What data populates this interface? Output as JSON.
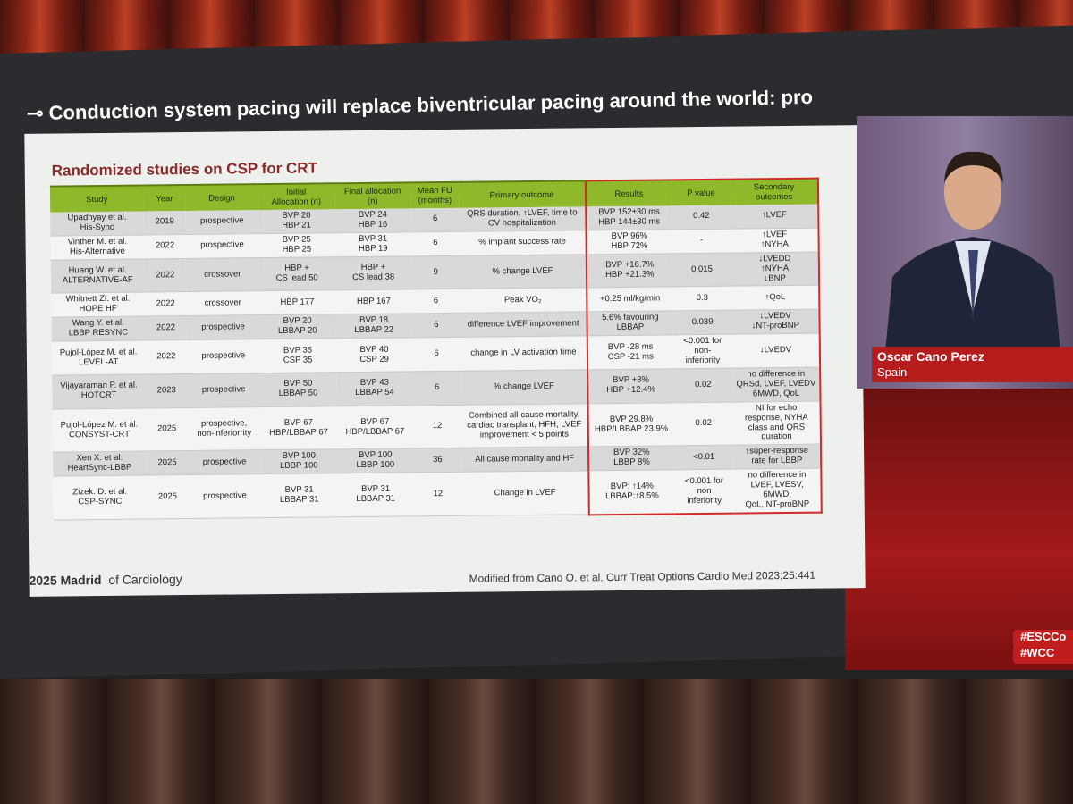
{
  "slide": {
    "title": "Conduction system pacing will replace biventricular pacing around the world: pro",
    "table_title": "Randomized studies on CSP for CRT",
    "table": {
      "headers": [
        "Study",
        "Year",
        "Design",
        "Initial\nAllocation (n)",
        "Final allocation\n(n)",
        "Mean FU\n(months)",
        "Primary outcome",
        "Results",
        "P value",
        "Secondary\noutcomes"
      ],
      "rows": [
        [
          "Upadhyay et al.\nHis-Sync",
          "2019",
          "prospective",
          "BVP 20\nHBP 21",
          "BVP 24\nHBP 16",
          "6",
          "QRS duration, ↑LVEF, time to\nCV hospitalization",
          "BVP 152±30 ms\nHBP 144±30 ms",
          "0.42",
          "↑LVEF"
        ],
        [
          "Vinther M. et al.\nHis-Alternative",
          "2022",
          "prospective",
          "BVP 25\nHBP 25",
          "BVP 31\nHBP 19",
          "6",
          "% implant success rate",
          "BVP 96%\nHBP  72%",
          "-",
          "↑LVEF\n↑NYHA"
        ],
        [
          "Huang W. et al.\nALTERNATIVE-AF",
          "2022",
          "crossover",
          "HBP +\nCS lead 50",
          "HBP +\nCS lead 38",
          "9",
          "% change LVEF",
          "BVP +16.7%\nHBP +21.3%",
          "0.015",
          "↓LVEDD\n↑NYHA\n↓BNP"
        ],
        [
          "Whitnett ZI. et al.\nHOPE HF",
          "2022",
          "crossover",
          "HBP 177",
          "HBP 167",
          "6",
          "Peak VO₂",
          "+0.25 ml/kg/min",
          "0.3",
          "↑QoL"
        ],
        [
          "Wang Y. et al.\nLBBP RESYNC",
          "2022",
          "prospective",
          "BVP 20\nLBBAP 20",
          "BVP 18\nLBBAP 22",
          "6",
          "difference LVEF improvement",
          "5.6% favouring\nLBBAP",
          "0.039",
          "↓LVEDV\n↓NT-proBNP"
        ],
        [
          "Pujol-López M. et al.\nLEVEL-AT",
          "2022",
          "prospective",
          "BVP 35\nCSP 35",
          "BVP 40\nCSP 29",
          "6",
          "change in LV activation time",
          "BVP -28 ms\nCSP -21 ms",
          "<0.001 for non-\ninferiority",
          "↓LVEDV"
        ],
        [
          "Vijayaraman P. et al.\nHOTCRT",
          "2023",
          "prospective",
          "BVP 50\nLBBAP 50",
          "BVP 43\nLBBAP 54",
          "6",
          "% change LVEF",
          "BVP +8%\nHBP +12.4%",
          "0.02",
          "no difference in\nQRSd, LVEF, LVEDV\n6MWD, QoL"
        ],
        [
          "Pujol-López M. et al.\nCONSYST-CRT",
          "2025",
          "prospective,\nnon-inferiorrity",
          "BVP 67\nHBP/LBBAP 67",
          "BVP 67\nHBP/LBBAP 67",
          "12",
          "Combined all-cause mortality,\ncardiac transplant, HFH, LVEF\nimprovement < 5 points",
          "BVP 29.8%\nHBP/LBBAP 23.9%",
          "0.02",
          "NI for echo\nresponse, NYHA\nclass and QRS\nduration"
        ],
        [
          "Xen X. et al.\nHeartSync-LBBP",
          "2025",
          "prospective",
          "BVP 100\nLBBP 100",
          "BVP 100\nLBBP 100",
          "36",
          "All cause mortality and HF",
          "BVP 32%\nLBBP 8%",
          "<0.01",
          "↑super-response\nrate for LBBP"
        ],
        [
          "Zizek. D. et al.\nCSP-SYNC",
          "2025",
          "prospective",
          "BVP 31\nLBBAP 31",
          "BVP 31\nLBBAP 31",
          "12",
          "Change in LVEF",
          "BVP: ↑14%\nLBBAP:↑8.5%",
          "<0.001 for non\ninferiority",
          "no difference in\nLVEF, LVESV, 6MWD,\nQoL, NT-proBNP"
        ]
      ]
    },
    "logo_year_city": "2025 Madrid",
    "logo_text": "of Cardiology",
    "source": "Modified from Cano O. et al. Curr Treat Options Cardio Med 2023;25:441"
  },
  "speaker": {
    "name": "Oscar Cano Perez",
    "country": "Spain"
  },
  "hashtags": [
    "#ESCCo",
    "#WCC"
  ]
}
